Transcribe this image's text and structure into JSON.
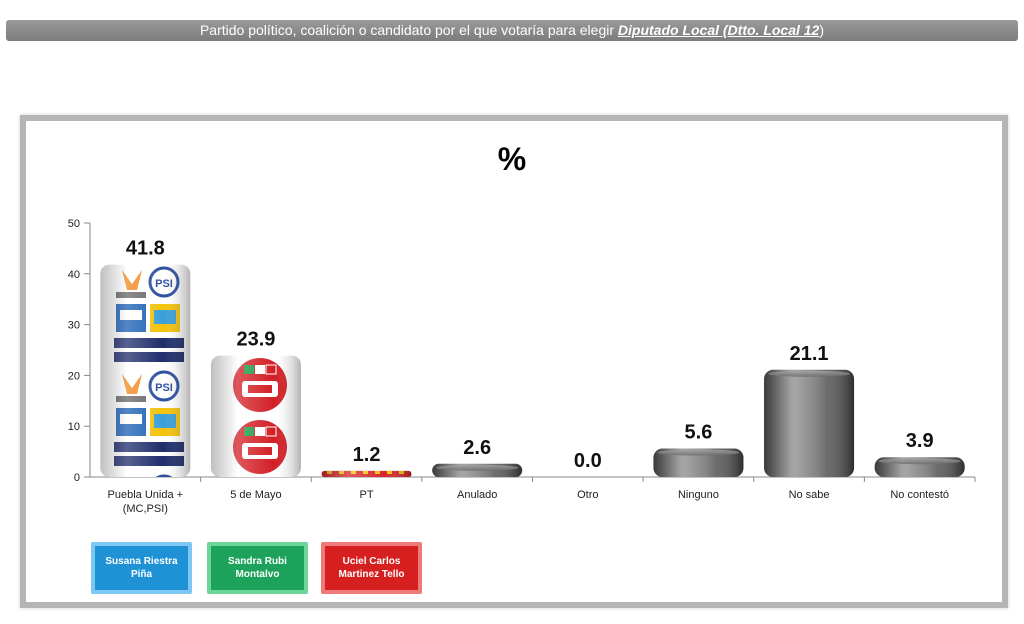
{
  "header": {
    "text": "Partido político, coalición  o candidato por el que votaría para  elegir ",
    "highlight": "Diputado Local (Dtto. Local 12",
    "suffix": ")"
  },
  "legend": [
    {
      "label": "Susana Riestra Piña",
      "color": "#1f92d6"
    },
    {
      "label": "Sandra Rubi Montalvo",
      "color": "#1ca25a"
    },
    {
      "label": "Uciel Carlos Martinez Tello",
      "color": "#d62020"
    }
  ],
  "chart_data": {
    "type": "bar",
    "title": "%",
    "categories": [
      "Puebla Unida + (MC,PSI)",
      "5 de Mayo",
      "PT",
      "Anulado",
      "Otro",
      "Ninguno",
      "No sabe",
      "No contestó"
    ],
    "values": [
      41.8,
      23.9,
      1.2,
      2.6,
      0.0,
      5.6,
      21.1,
      3.9
    ],
    "data_labels": [
      "41.8",
      "23.9",
      "1.2",
      "2.6",
      "0.0",
      "5.6",
      "21.1",
      "3.9"
    ],
    "bar_fills": [
      "logo-puebla-unida",
      "logo-5-de-mayo",
      "logo-pt",
      "gray",
      "gray",
      "gray",
      "gray",
      "gray"
    ],
    "yticks": [
      "0",
      "10",
      "20",
      "30",
      "40",
      "50"
    ],
    "ylim": [
      0,
      50
    ],
    "grid": false
  }
}
